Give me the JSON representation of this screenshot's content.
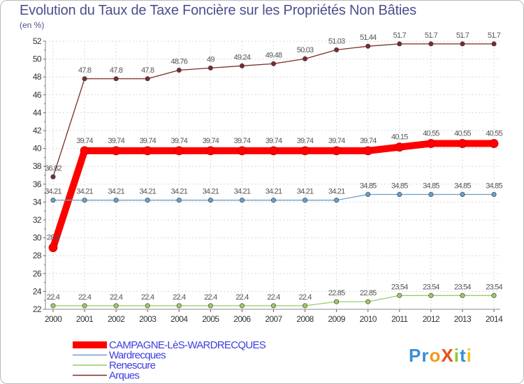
{
  "chart_data": {
    "type": "line",
    "title": "Evolution du Taux de Taxe Foncière sur les Propriétés Non Bâties",
    "ylabel": "(en %)",
    "xlabel": "",
    "ylim": [
      22,
      52
    ],
    "yticks": [
      22,
      24,
      26,
      28,
      30,
      32,
      34,
      36,
      38,
      40,
      42,
      44,
      46,
      48,
      50,
      52
    ],
    "x": [
      "2000",
      "2001",
      "2002",
      "2003",
      "2004",
      "2005",
      "2006",
      "2007",
      "2008",
      "2009",
      "2010",
      "2011",
      "2012",
      "2013",
      "2014"
    ],
    "grid": true,
    "series": [
      {
        "name": "Arques",
        "color": "#7a2b2b",
        "values": [
          36.82,
          47.8,
          47.8,
          47.8,
          48.76,
          49,
          49.24,
          49.48,
          50.03,
          51.03,
          51.44,
          51.7,
          51.7,
          51.7,
          51.7
        ],
        "labels": [
          "36.82",
          "47.8",
          "47.8",
          "47.8",
          "48.76",
          "49",
          "49.24",
          "49.48",
          "50.03",
          "51.03",
          "51.44",
          "51.7",
          "51.7",
          "51.7",
          "51.7"
        ]
      },
      {
        "name": "CAMPAGNE-LèS-WARDRECQUES",
        "color": "#ff0000",
        "values": [
          28.9,
          39.74,
          39.74,
          39.74,
          39.74,
          39.74,
          39.74,
          39.74,
          39.74,
          39.74,
          39.74,
          40.15,
          40.55,
          40.55,
          40.55
        ],
        "labels": [
          "28.9",
          "39.74",
          "39.74",
          "39.74",
          "39.74",
          "39.74",
          "39.74",
          "39.74",
          "39.74",
          "39.74",
          "39.74",
          "40.15",
          "40.55",
          "40.55",
          "40.55"
        ]
      },
      {
        "name": "Wardrecques",
        "color": "#6a9fcc",
        "values": [
          34.21,
          34.21,
          34.21,
          34.21,
          34.21,
          34.21,
          34.21,
          34.21,
          34.21,
          34.21,
          34.85,
          34.85,
          34.85,
          34.85,
          34.85
        ],
        "labels": [
          "34.21",
          "34.21",
          "34.21",
          "34.21",
          "34.21",
          "34.21",
          "34.21",
          "34.21",
          "34.21",
          "34.21",
          "34.85",
          "34.85",
          "34.85",
          "34.85",
          "34.85"
        ]
      },
      {
        "name": "Renescure",
        "color": "#99cc66",
        "values": [
          22.4,
          22.4,
          22.4,
          22.4,
          22.4,
          22.4,
          22.4,
          22.4,
          22.4,
          22.85,
          22.85,
          23.54,
          23.54,
          23.54,
          23.54
        ],
        "labels": [
          "22.4",
          "22.4",
          "22.4",
          "22.4",
          "22.4",
          "22.4",
          "22.4",
          "22.4",
          "22.4",
          "22.85",
          "22.85",
          "23.54",
          "23.54",
          "23.54",
          "23.54"
        ]
      }
    ],
    "legend": {
      "placement": "bottom-left",
      "items": [
        "CAMPAGNE-LèS-WARDRECQUES",
        "Wardrecques",
        "Renescure",
        "Arques"
      ],
      "text_color": "#3c3ce0"
    }
  },
  "logo": {
    "text": "ProXiti",
    "letters": [
      "P",
      "r",
      "o",
      "X",
      "i",
      "t",
      "i"
    ],
    "colors": [
      "#3a8fd6",
      "#3a8fd6",
      "#f29a1b",
      "#e94e1b",
      "#8cc63f",
      "#3a8fd6",
      "#f2c21b"
    ]
  }
}
